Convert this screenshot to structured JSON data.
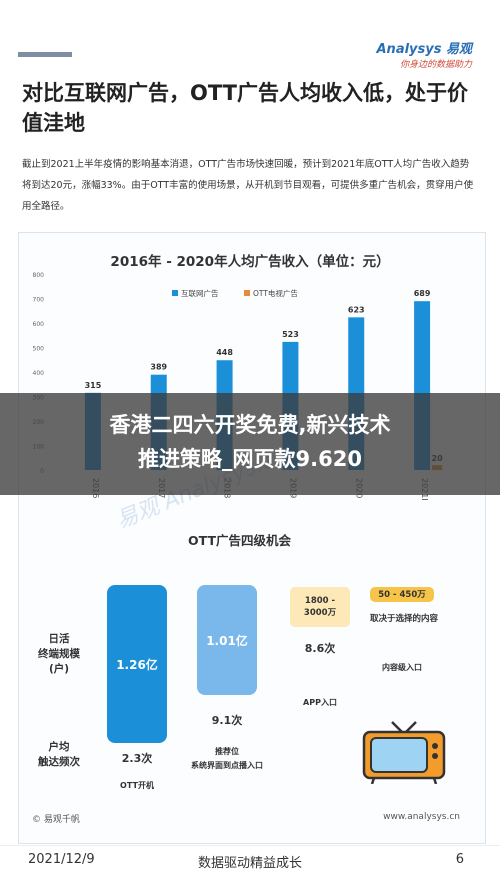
{
  "brand": {
    "main": "Analysys 易观",
    "sub": "你身边的数据助力"
  },
  "headline": "对比互联网广告，OTT广告人均收入低，处于价值洼地",
  "paragraph": "截止到2021上半年疫情的影响基本消退，OTT广告市场快速回暖，预计到2021年底OTT人均广告收入趋势将到达20元，涨幅33%。由于OTT丰富的使用场景，从开机到节目观看，可提供多重广告机会，贯穿用户使用全路径。",
  "chart_data": {
    "type": "bar",
    "title": "2016年 - 2020年人均广告收入（单位：元）",
    "categories": [
      "2016",
      "2017",
      "2018",
      "2019",
      "2020",
      "2021E"
    ],
    "series": [
      {
        "name": "互联网广告",
        "values": [
          315,
          389,
          448,
          523,
          623,
          689
        ],
        "color": "#1b8fd8"
      },
      {
        "name": "OTT电视广告",
        "values": [
          null,
          null,
          null,
          null,
          null,
          20
        ],
        "color": "#e88a3a"
      }
    ],
    "ylim": [
      0,
      800
    ],
    "yticks": [
      "0",
      "100",
      "200",
      "300",
      "400",
      "500",
      "600",
      "700",
      "800"
    ],
    "legend_position": "top",
    "data_labels": [
      "315",
      "389",
      "448",
      "523",
      "623",
      "689",
      "20"
    ]
  },
  "overlay": {
    "line1": "香港二四六开奖免费,新兴技术",
    "line2": "推进策略_网页款9.620"
  },
  "watermark": "易观 Analysys.cn",
  "ott_section": {
    "title": "OTT广告四级机会",
    "row_label_top": "日活\n终端规模\n(户)",
    "row_label_bottom": "户均\n触达频次",
    "card1": {
      "value": "1.26亿",
      "freq": "2.3次",
      "caption": "OTT开机",
      "color": "#1b8fd8"
    },
    "card2": {
      "value": "1.01亿",
      "freq": "9.1次",
      "caption": "推荐位\n系统界面到点播入口",
      "color": "#7ab8ec"
    },
    "card3": {
      "range": "1800 -\n3000万",
      "freq": "8.6次",
      "caption": "APP入口",
      "color": "#fde8b8"
    },
    "card4": {
      "range": "50 - 450万",
      "desc": "取决于选择的内容",
      "caption": "内容级入口",
      "color": "#f7c44a"
    }
  },
  "footer": {
    "source": "© 易观千帆",
    "site": "www.analysys.cn"
  },
  "bottom": {
    "date": "2021/12/9",
    "title": "数据驱动精益成长",
    "page": "6"
  }
}
